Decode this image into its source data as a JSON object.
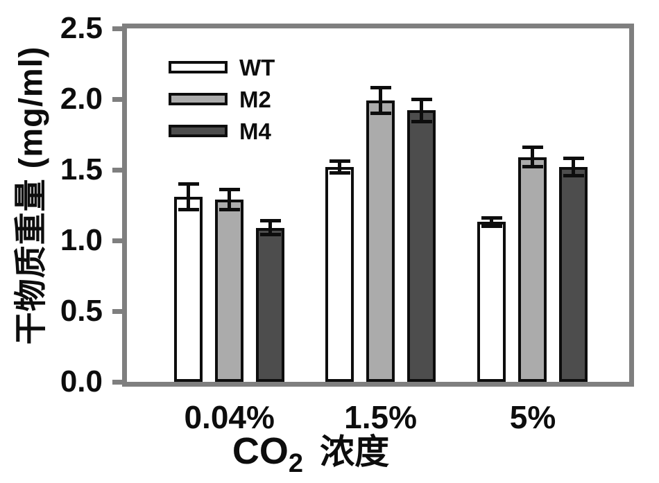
{
  "figure": {
    "ylabel": "干物质重量 (mg/ml)",
    "xlabel": {
      "prefix": "CO",
      "subscript": "2",
      "suffix": "浓度"
    }
  },
  "chart_data": {
    "type": "bar",
    "title": "",
    "xlabel": "CO2 浓度",
    "ylabel": "干物质重量 (mg/ml)",
    "categories": [
      "0.04%",
      "1.5%",
      "5%"
    ],
    "series": [
      {
        "name": "WT",
        "fill": "#ffffff",
        "values": [
          1.31,
          1.52,
          1.13
        ],
        "errors": [
          0.09,
          0.04,
          0.03
        ]
      },
      {
        "name": "M2",
        "fill": "#ababab",
        "values": [
          1.29,
          1.99,
          1.59
        ],
        "errors": [
          0.07,
          0.09,
          0.07
        ]
      },
      {
        "name": "M4",
        "fill": "#4d4d4d",
        "values": [
          1.09,
          1.92,
          1.52
        ],
        "errors": [
          0.05,
          0.08,
          0.06
        ]
      }
    ],
    "ylim": [
      0,
      2.5
    ],
    "yticks": [
      "0.0",
      "0.5",
      "1.0",
      "1.5",
      "2.0",
      "2.5"
    ],
    "grid": false,
    "error_bars": true,
    "legend_position": "upper-left-inside"
  },
  "colors": {
    "frame": "#7f7f7f",
    "ink": "#0d0d0d",
    "background": "#ffffff"
  }
}
